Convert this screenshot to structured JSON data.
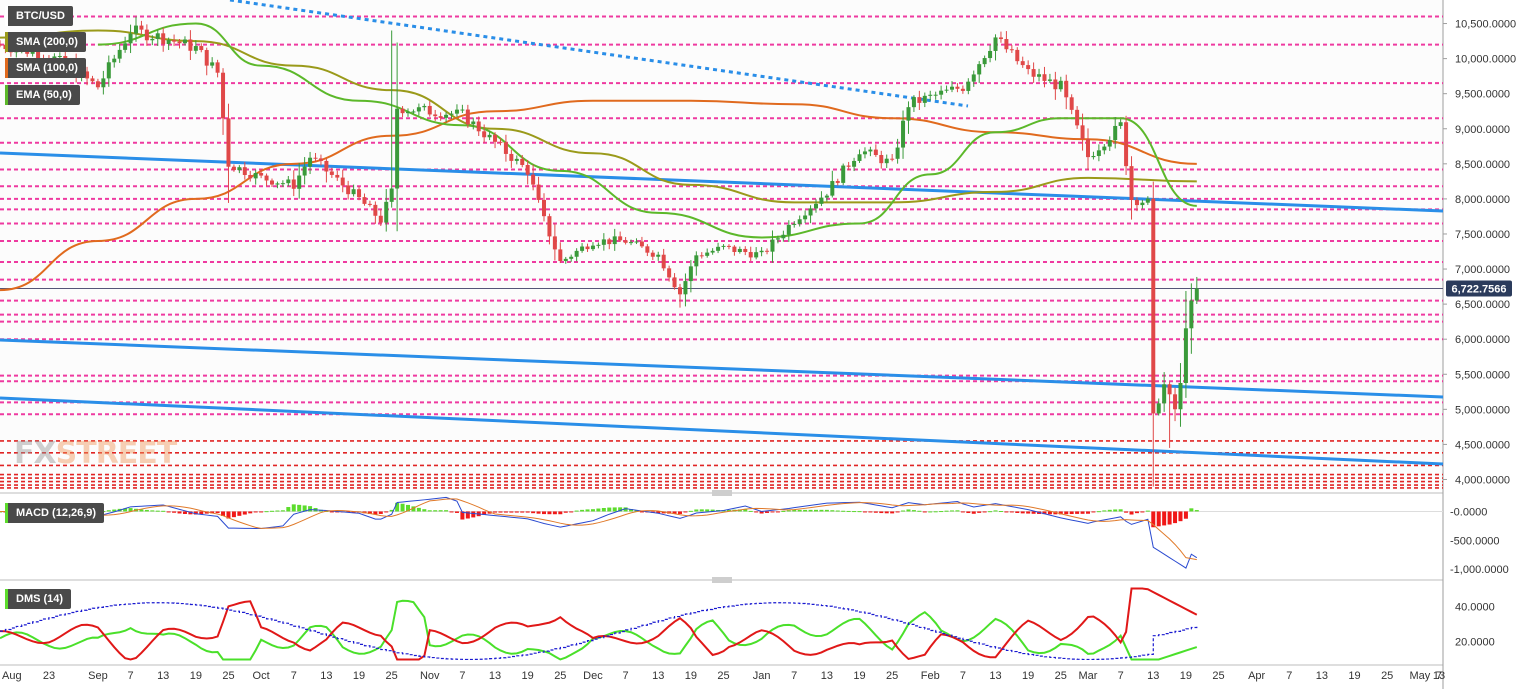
{
  "symbol": "BTC/USD",
  "indicators": {
    "sma200": "SMA (200,0)",
    "sma100": "SMA (100,0)",
    "ema50": "EMA (50,0)",
    "macd": "MACD (12,26,9)",
    "dms": "DMS (14)"
  },
  "watermark": {
    "fx": "FX",
    "street": "STREET"
  },
  "price_badge": "6,722.7566",
  "colors": {
    "bull": "#3a9a3a",
    "bear": "#e04848",
    "sma200": "#9a9a1a",
    "sma100": "#e06a1e",
    "ema50": "#5cb82a",
    "trendline": "#2a8ee8",
    "resistance": "#ee3aa0",
    "support": "#e02424",
    "macd_hist_pos": "#5cdc2c",
    "macd_hist_neg": "#f01818",
    "macd_line": "#2a4ad0",
    "signal_line": "#e07a2a",
    "di_plus": "#4ae02a",
    "di_minus": "#e01818",
    "adx": "#1a1ad0"
  },
  "chart_data": [
    {
      "type": "candlestick",
      "title": "BTC/USD",
      "x_labels": [
        "Aug",
        "23",
        "Sep",
        "7",
        "13",
        "19",
        "25",
        "Oct",
        "7",
        "13",
        "19",
        "25",
        "Nov",
        "7",
        "13",
        "19",
        "25",
        "Dec",
        "7",
        "13",
        "19",
        "25",
        "Jan",
        "7",
        "13",
        "19",
        "25",
        "Feb",
        "7",
        "13",
        "19",
        "25",
        "Mar",
        "7",
        "13",
        "19",
        "25",
        "Apr",
        "7",
        "13",
        "19",
        "25",
        "May",
        "7",
        "13"
      ],
      "y_ticks": [
        "10,500.0000",
        "10,000.0000",
        "9,500.0000",
        "9,000.0000",
        "8,500.0000",
        "8,000.0000",
        "7,500.0000",
        "7,000.0000",
        "6,500.0000",
        "6,000.0000",
        "5,500.0000",
        "5,000.0000",
        "4,500.0000",
        "4,000.0000"
      ],
      "ylim": [
        3850,
        10750
      ],
      "last_price": 6722.7566,
      "resistance_levels": [
        10600,
        10200,
        9650,
        9150,
        8800,
        8420,
        8180,
        8000,
        7850,
        7650,
        7400,
        7100,
        6850,
        6550,
        6350,
        6250,
        6000,
        5480,
        5400,
        5100,
        4930
      ],
      "support_levels": [
        4550,
        4380,
        4200,
        4070,
        4020,
        3970,
        3920,
        3880
      ],
      "close_path": [
        [
          "Aug 14",
          10200
        ],
        [
          "Aug 23",
          10050
        ],
        [
          "Sep 1",
          9600
        ],
        [
          "Sep 7",
          10400
        ],
        [
          "Sep 13",
          10300
        ],
        [
          "Sep 19",
          10150
        ],
        [
          "Sep 23",
          9800
        ],
        [
          "Sep 25",
          8500
        ],
        [
          "Oct 1",
          8300
        ],
        [
          "Oct 7",
          8200
        ],
        [
          "Oct 10",
          8600
        ],
        [
          "Oct 19",
          8000
        ],
        [
          "Oct 23",
          7700
        ],
        [
          "Oct 25",
          8100
        ],
        [
          "Oct 26",
          9300
        ],
        [
          "Nov 7",
          9200
        ],
        [
          "Nov 13",
          8800
        ],
        [
          "Nov 19",
          8400
        ],
        [
          "Nov 22",
          7700
        ],
        [
          "Nov 25",
          7100
        ],
        [
          "Dec 1",
          7400
        ],
        [
          "Dec 7",
          7400
        ],
        [
          "Dec 13",
          7200
        ],
        [
          "Dec 17",
          6650
        ],
        [
          "Dec 20",
          7200
        ],
        [
          "Dec 25",
          7300
        ],
        [
          "Jan 1",
          7200
        ],
        [
          "Jan 7",
          7700
        ],
        [
          "Jan 13",
          8100
        ],
        [
          "Jan 19",
          8700
        ],
        [
          "Jan 25",
          8500
        ],
        [
          "Jan 28",
          9350
        ],
        [
          "Feb 7",
          9600
        ],
        [
          "Feb 13",
          10300
        ],
        [
          "Feb 19",
          9800
        ],
        [
          "Feb 25",
          9600
        ],
        [
          "Mar 1",
          8600
        ],
        [
          "Mar 7",
          9050
        ],
        [
          "Mar 9",
          8000
        ],
        [
          "Mar 12",
          7950
        ],
        [
          "Mar 13",
          4900
        ],
        [
          "Mar 15",
          5350
        ],
        [
          "Mar 17",
          5000
        ],
        [
          "Mar 18",
          5350
        ],
        [
          "Mar 19",
          6200
        ],
        [
          "Mar 20",
          6500
        ],
        [
          "Mar 21",
          6722.7566
        ]
      ],
      "ema50_path": [
        [
          "Sep 1",
          10200
        ],
        [
          "Sep 19",
          10500
        ],
        [
          "Oct 1",
          9900
        ],
        [
          "Oct 19",
          9400
        ],
        [
          "Nov 7",
          9050
        ],
        [
          "Nov 25",
          8400
        ],
        [
          "Dec 13",
          7800
        ],
        [
          "Jan 1",
          7450
        ],
        [
          "Jan 19",
          7650
        ],
        [
          "Feb 1",
          8350
        ],
        [
          "Feb 13",
          8950
        ],
        [
          "Feb 25",
          9150
        ],
        [
          "Mar 7",
          9150
        ],
        [
          "Mar 21",
          7900
        ]
      ],
      "sma100_path": [
        [
          "Aug 14",
          6700
        ],
        [
          "Sep 1",
          7400
        ],
        [
          "Sep 19",
          8000
        ],
        [
          "Oct 7",
          8500
        ],
        [
          "Oct 25",
          8900
        ],
        [
          "Nov 13",
          9250
        ],
        [
          "Dec 1",
          9400
        ],
        [
          "Dec 19",
          9400
        ],
        [
          "Jan 7",
          9350
        ],
        [
          "Jan 25",
          9150
        ],
        [
          "Feb 13",
          8950
        ],
        [
          "Mar 1",
          8850
        ],
        [
          "Mar 21",
          8500
        ]
      ],
      "sma200_path": [
        [
          "Aug 14",
          10300
        ],
        [
          "Sep 1",
          10400
        ],
        [
          "Sep 19",
          10250
        ],
        [
          "Oct 7",
          9900
        ],
        [
          "Oct 25",
          9550
        ],
        [
          "Nov 13",
          9000
        ],
        [
          "Dec 1",
          8650
        ],
        [
          "Dec 19",
          8200
        ],
        [
          "Jan 7",
          7950
        ],
        [
          "Jan 25",
          7950
        ],
        [
          "Feb 13",
          8100
        ],
        [
          "Mar 1",
          8300
        ],
        [
          "Mar 21",
          8250
        ]
      ]
    },
    {
      "type": "bar",
      "title": "MACD (12,26,9)",
      "y_ticks": [
        "-0.0000",
        "-500.0000",
        "-1,000.0000"
      ],
      "ylim": [
        -1100,
        250
      ]
    },
    {
      "type": "line",
      "title": "DMS (14)",
      "y_ticks": [
        "40.0000",
        "20.0000"
      ],
      "ylim": [
        8,
        52
      ]
    }
  ]
}
